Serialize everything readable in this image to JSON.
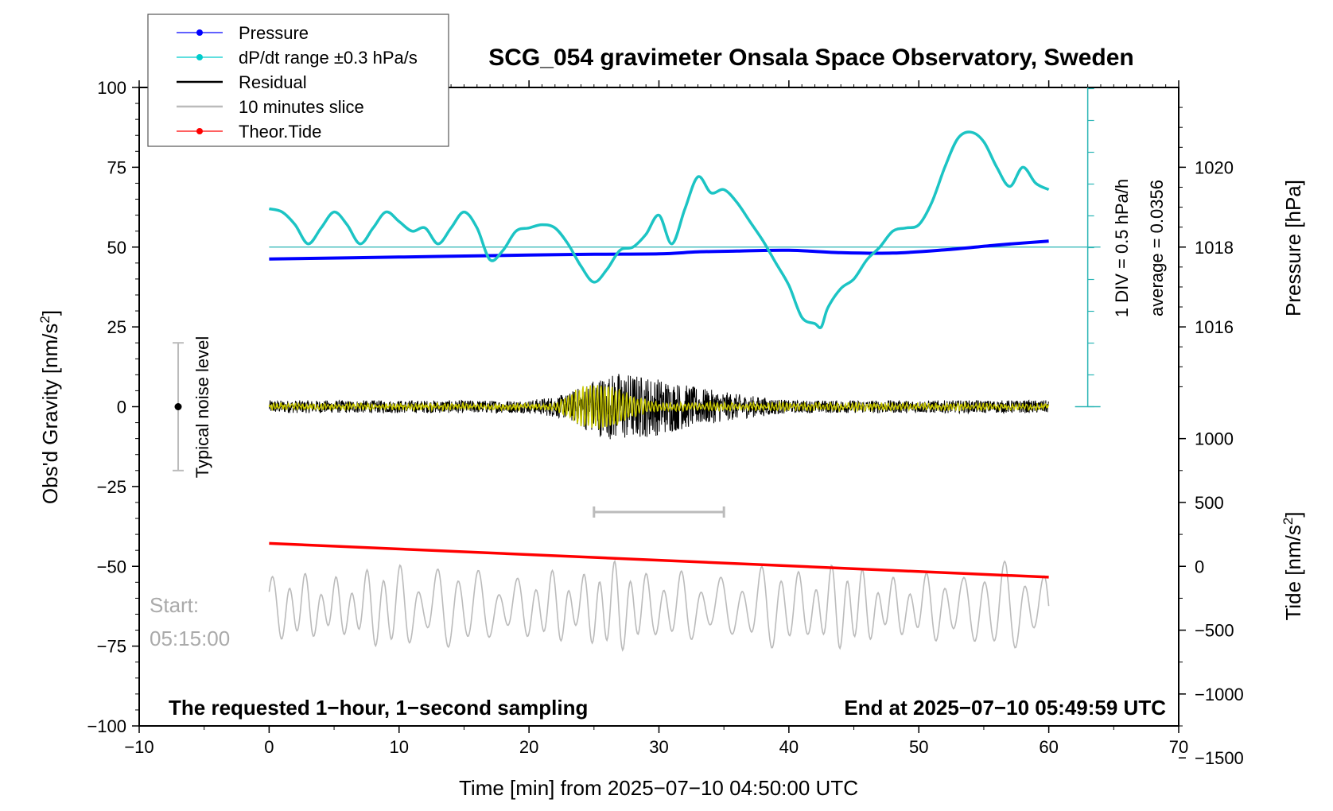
{
  "chart_data": {
    "type": "line",
    "title": "SCG_054 gravimeter Onsala Space Observatory, Sweden",
    "xlabel": "Time [min] from 2025−07−10 04:50:00 UTC",
    "ylabel_left": "Obs'd Gravity [nm/s",
    "ylabel_left_sup": "2",
    "ylabel_left_end": "]",
    "ylabel_right_pressure": "Pressure [hPa]",
    "ylabel_right_tide": "Tide [nm/s",
    "ylabel_right_tide_sup": "2",
    "ylabel_right_tide_end": "]",
    "xlim": [
      -10,
      70
    ],
    "ylim": [
      -100,
      100
    ],
    "pressure_lim": [
      1014,
      1022
    ],
    "tide_lim": [
      -1500,
      1500
    ],
    "x_ticks": [
      -10,
      0,
      10,
      20,
      30,
      40,
      50,
      60,
      70
    ],
    "x_tick_labels": [
      "−10",
      "0",
      "10",
      "20",
      "30",
      "40",
      "50",
      "60",
      "70"
    ],
    "y_ticks": [
      100,
      75,
      50,
      25,
      0,
      -25,
      -50,
      -75,
      -100
    ],
    "y_tick_labels": [
      "100",
      "75",
      "50",
      "25",
      "0",
      "−25",
      "−50",
      "−75",
      "−100"
    ],
    "pressure_ticks": [
      1020,
      1018,
      1016
    ],
    "pressure_tick_labels": [
      "1020",
      "1018",
      "1016"
    ],
    "tide_ticks": [
      1000,
      500,
      0,
      -500,
      -1000,
      -1500
    ],
    "tide_tick_labels": [
      "1000",
      "500",
      "0",
      "−500",
      "−1000",
      "−1500"
    ],
    "legend": [
      {
        "label": "Pressure",
        "color": "#0000ff",
        "marker": true
      },
      {
        "label": "dP/dt range ±0.3 hPa/s",
        "color": "#00cccc",
        "marker": true
      },
      {
        "label": "Residual",
        "color": "#000000",
        "marker": false
      },
      {
        "label": "10 minutes slice",
        "color": "#bbbbbb",
        "marker": false
      },
      {
        "label": "Theor.Tide",
        "color": "#ff0000",
        "marker": true
      }
    ],
    "series": [
      {
        "name": "Pressure",
        "units": "hPa",
        "color": "#0000ff",
        "x": [
          0,
          10,
          20,
          25,
          30,
          33,
          36,
          40,
          44,
          48,
          52,
          56,
          60
        ],
        "values": [
          1017.7,
          1017.75,
          1017.8,
          1017.82,
          1017.83,
          1017.88,
          1017.9,
          1017.92,
          1017.86,
          1017.85,
          1017.93,
          1018.05,
          1018.15
        ]
      },
      {
        "name": "dP/dt",
        "units": "nm/s2-axis",
        "color": "#00cccc",
        "x": [
          0,
          1,
          2,
          3,
          4,
          5,
          6,
          7,
          8,
          9,
          10,
          11,
          12,
          13,
          14,
          15,
          16,
          17,
          18,
          19,
          20,
          21,
          22,
          23,
          24,
          25,
          26,
          27,
          28,
          29,
          30,
          31,
          32,
          33,
          34,
          35,
          36,
          37,
          38,
          39,
          40,
          41,
          42,
          42.5,
          43,
          44,
          45,
          46,
          47,
          48,
          49,
          50,
          51,
          52,
          53,
          54,
          55,
          56,
          57,
          58,
          59,
          60
        ],
        "values": [
          62,
          61,
          57,
          51,
          56,
          61,
          57,
          51,
          56,
          61,
          58,
          55,
          56,
          51,
          56,
          61,
          56,
          46,
          49,
          55,
          56,
          57,
          56,
          51,
          44,
          39,
          43,
          49,
          50,
          54,
          60,
          51,
          62,
          72,
          67,
          68,
          64,
          58,
          52,
          45,
          38,
          28,
          26,
          25,
          31,
          37,
          40,
          46,
          50,
          55,
          56,
          57,
          64,
          75,
          84,
          86,
          83,
          75,
          69,
          75,
          70,
          68
        ]
      },
      {
        "name": "Theor.Tide",
        "units": "nm/s2",
        "color": "#ff0000",
        "x": [
          0,
          60
        ],
        "values": [
          180,
          -85
        ]
      },
      {
        "name": "Residual",
        "units": "nm/s2",
        "color": "#000000",
        "amplitude_envelope": {
          "x": [
            0,
            20,
            23,
            25,
            27,
            30,
            33,
            36,
            40,
            60
          ],
          "values": [
            2,
            2,
            4,
            9,
            11,
            9,
            6,
            4,
            2,
            2
          ]
        }
      },
      {
        "name": "10 minutes slice",
        "units": "nm/s2",
        "color": "#bbbbbb",
        "x_range": [
          0,
          60
        ],
        "center": -63,
        "typical_amplitude": 12
      },
      {
        "name": "Yellow filtered residual",
        "color": "#c8c800",
        "amplitude_envelope": {
          "x": [
            0,
            22,
            24,
            26,
            28,
            30,
            60
          ],
          "values": [
            0.6,
            0.6,
            6,
            7,
            3,
            1,
            0.6
          ]
        }
      }
    ],
    "reference_line": {
      "value": 50,
      "from_x": 0,
      "to_x": 63
    },
    "slice_bar": {
      "x_start": 25,
      "x_end": 35,
      "y": -33
    },
    "noise_bar": {
      "x": -7,
      "y_center": 0,
      "half_range": 20,
      "label": "Typical noise level"
    },
    "pressure_scale_text": [
      "1 DIV = 0.5 hPa/h",
      "average = 0.0356"
    ],
    "start_label": [
      "Start:",
      "05:15:00"
    ],
    "bottom_left_note": "The requested 1−hour, 1−second sampling",
    "bottom_right_note": "End at 2025−07−10 05:49:59 UTC"
  }
}
